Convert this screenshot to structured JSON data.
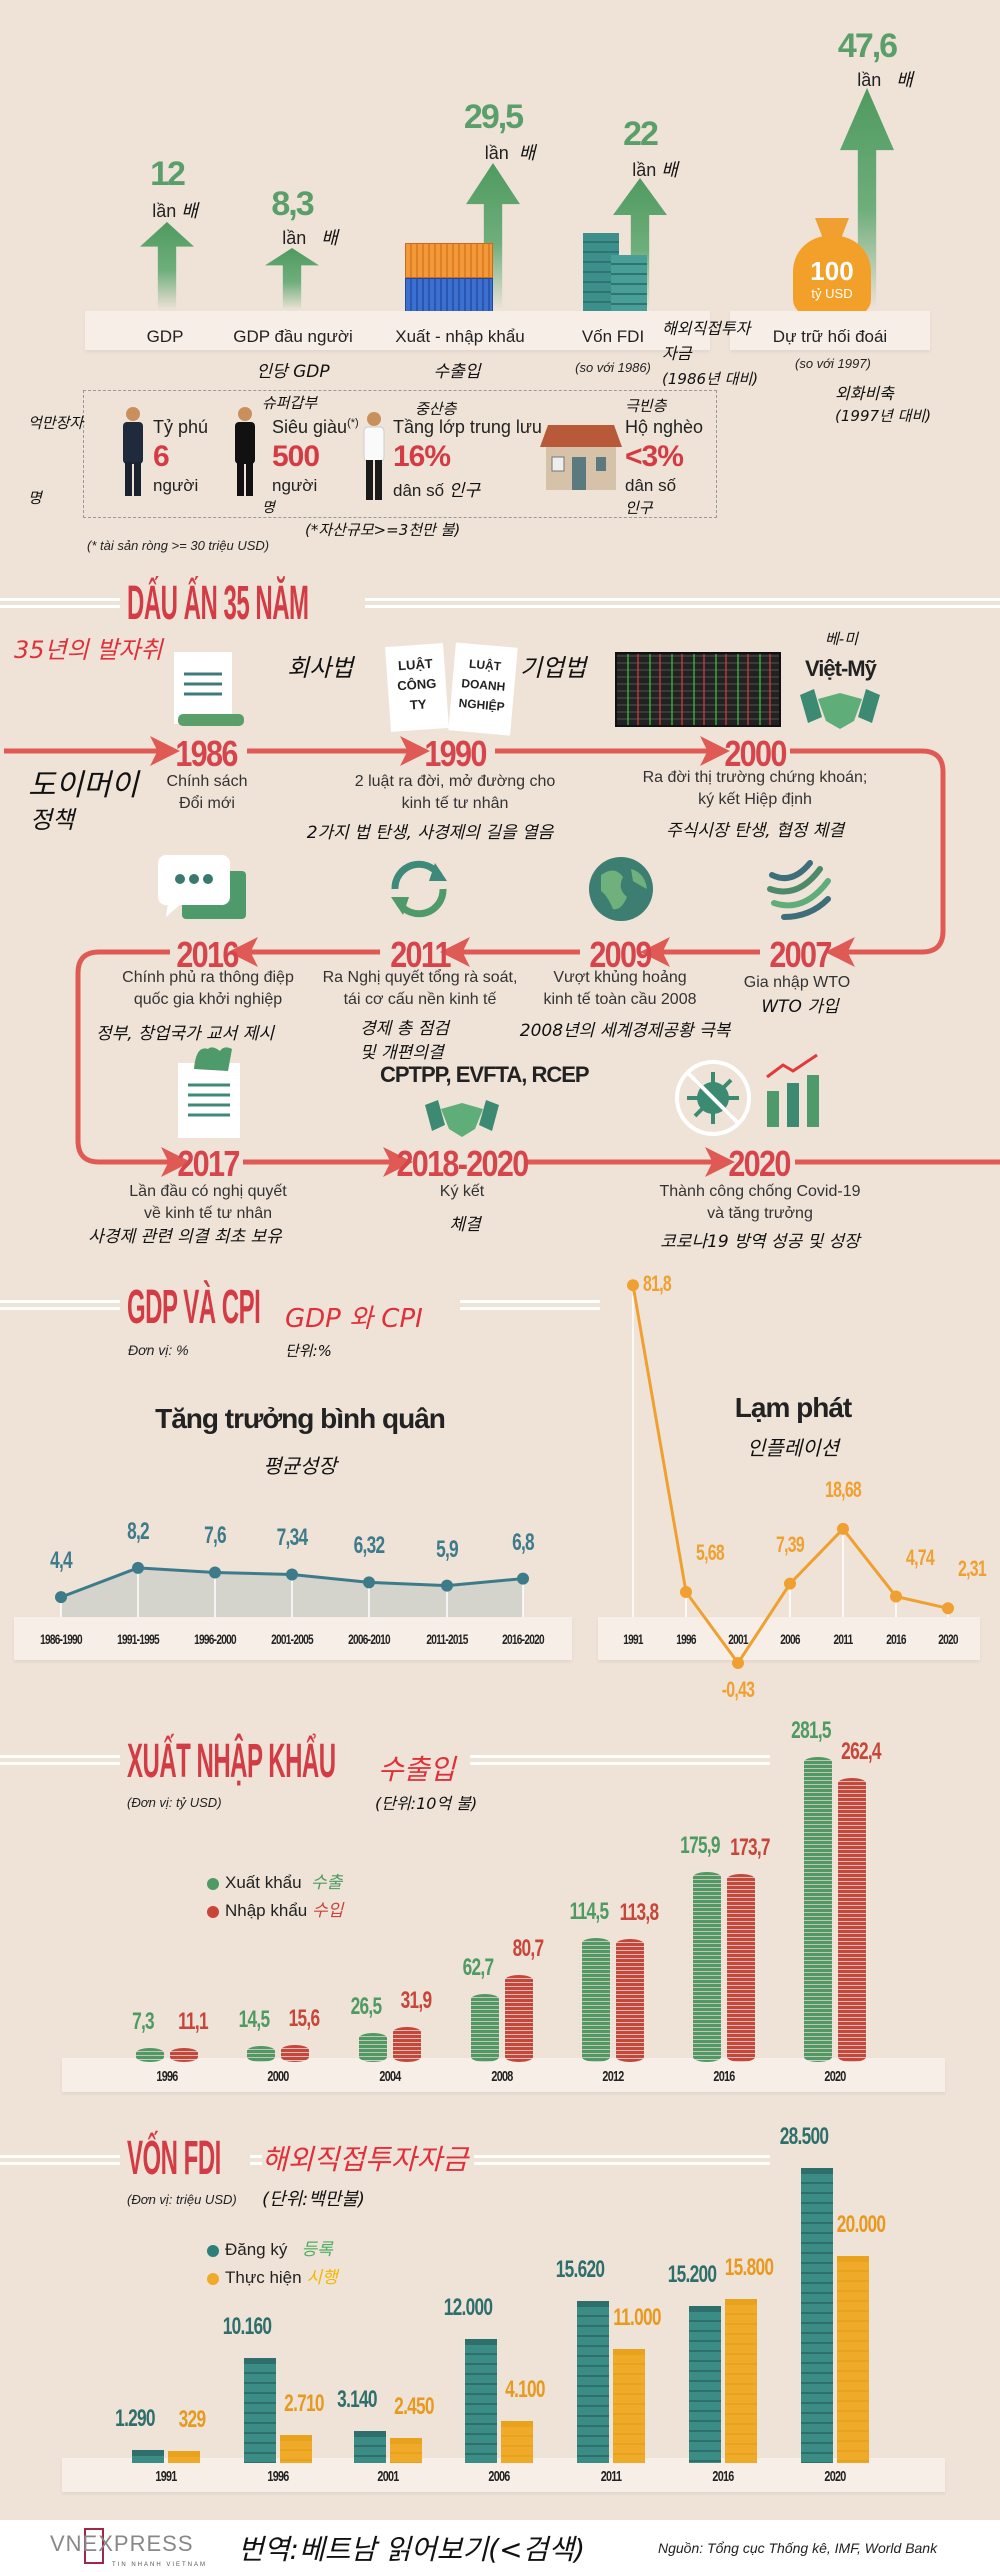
{
  "colors": {
    "background": "#efe3d8",
    "green": "#5a9e6a",
    "red": "#d33c45",
    "timeline": "#e05a55",
    "gdp_line": "#3d7b8a",
    "cpi_line": "#f0a030",
    "export": "#4e9a63",
    "import": "#c8453a",
    "fdi_registered": "#3a8c84",
    "fdi_implemented": "#f0aa2a"
  },
  "overview": {
    "items": [
      {
        "value": "12",
        "unit": "lần",
        "unit_ko": "배",
        "label": "GDP"
      },
      {
        "value": "8,3",
        "unit": "lần",
        "unit_ko": "배",
        "label": "GDP đầu người",
        "label_ko": "인당 GDP"
      },
      {
        "value": "29,5",
        "unit": "lần",
        "unit_ko": "배",
        "label": "Xuất - nhập khẩu",
        "label_ko": "수출입"
      },
      {
        "value": "22",
        "unit": "lần",
        "unit_ko": "배",
        "label": "Vốn FDI",
        "note": "(so với 1986)",
        "label_ko": "해외직접투자",
        "label_ko2": "자금",
        "note_ko": "(1986년 대비)"
      },
      {
        "value": "47,6",
        "unit": "lần",
        "unit_ko": "배",
        "label": "Dự trữ hối đoái",
        "note": "(so với 1997)",
        "label_ko": "외화비축",
        "note_ko": "(1997년 대비)",
        "bag_value": "100",
        "bag_unit": "tỷ USD"
      }
    ]
  },
  "society": {
    "groups": [
      {
        "title": "Tỷ phú",
        "title_ko": "억만장자",
        "value": "6",
        "unit": "người",
        "unit_ko": "명"
      },
      {
        "title": "Siêu giàu",
        "mark": "(*)",
        "title_ko": "슈퍼갑부",
        "value": "500",
        "unit": "người",
        "unit_ko": "명"
      },
      {
        "title": "Tầng lớp trung lưu",
        "title_ko": "중산층",
        "value": "16%",
        "unit": "dân số",
        "unit_ko": "인구"
      },
      {
        "title": "Hộ nghèo",
        "title_ko": "극빈층",
        "value": "<3%",
        "unit": "dân số",
        "unit_ko": "인구"
      }
    ],
    "footnote": "(* tài sản ròng >= 30 triệu USD)",
    "footnote_ko": "(*자산규모>=3천만 불)"
  },
  "timeline": {
    "title": "DẤU ẤN 35 NĂM",
    "title_ko": "35년의 발자취",
    "events": [
      {
        "year": "1986",
        "desc": [
          "Chính sách",
          "Đổi mới"
        ],
        "ko": [
          "도이머이",
          "정책"
        ]
      },
      {
        "year": "1990",
        "desc": [
          "2 luật ra đời, mở đường cho",
          "kinh tế tư nhân"
        ],
        "ko": [
          "2가지 법 탄생, 사경제의 길을 열음"
        ],
        "book1": [
          "LUẬT",
          "CÔNG",
          "TY"
        ],
        "book2": [
          "LUẬT",
          "DOANH",
          "NGHIỆP"
        ],
        "book1_ko": "회사법",
        "book2_ko": "기업법"
      },
      {
        "year": "2000",
        "desc": [
          "Ra đời thị trường chứng khoán;",
          "ký kết Hiệp định"
        ],
        "ko": [
          "주식시장 탄생, 협정 체결"
        ],
        "tag": "Việt-Mỹ",
        "tag_ko": "베-미"
      },
      {
        "year": "2007",
        "desc": [
          "Gia nhập WTO"
        ],
        "ko": [
          "WTO 가입"
        ]
      },
      {
        "year": "2009",
        "desc": [
          "Vượt khủng hoảng",
          "kinh tế toàn cầu 2008"
        ],
        "ko": [
          "2008년의 세계경제공황 극복"
        ]
      },
      {
        "year": "2011",
        "desc": [
          "Ra Nghị quyết tổng rà soát,",
          "tái cơ cấu nền kinh tế"
        ],
        "ko": [
          "경제 총 점검",
          "및 개편의결"
        ]
      },
      {
        "year": "2016",
        "desc": [
          "Chính phủ ra thông điệp",
          "quốc gia khởi nghiệp"
        ],
        "ko": [
          "정부, 창업국가 교서 제시"
        ]
      },
      {
        "year": "2017",
        "desc": [
          "Lần đầu có nghị quyết",
          "về kinh tế tư nhân"
        ],
        "ko": [
          "사경제 관련 의결 최초 보유"
        ]
      },
      {
        "year": "2018-2020",
        "desc": [
          "Ký kết"
        ],
        "ko": [
          "체결"
        ],
        "tag": "CPTPP, EVFTA, RCEP"
      },
      {
        "year": "2020",
        "desc": [
          "Thành công chống Covid-19",
          "và tăng trưởng"
        ],
        "ko": [
          "코로나19 방역 성공 및 성장"
        ]
      }
    ]
  },
  "gdp_cpi": {
    "title": "GDP VÀ CPI",
    "title_ko": "GDP 와 CPI",
    "unit": "Đơn vị: %",
    "unit_ko": "단위:%"
  },
  "trade": {
    "title": "XUẤT NHẬP KHẨU",
    "title_ko": "수출입",
    "unit": "(Đơn vị: tỷ USD)",
    "unit_ko": "(단위:10억 불)"
  },
  "fdi": {
    "title": "VỐN FDI",
    "title_ko": "해외직접투자자금",
    "unit": "(Đơn vị: triệu USD)",
    "unit_ko": "(단위:백만불)"
  },
  "chart_data": [
    {
      "type": "line",
      "title": "Tăng trưởng bình quân",
      "title_ko": "평균성장",
      "categories": [
        "1986-1990",
        "1991-1995",
        "1996-2000",
        "2001-2005",
        "2006-2010",
        "2011-2015",
        "2016-2020"
      ],
      "values": [
        4.4,
        8.2,
        7.6,
        7.34,
        6.32,
        5.9,
        6.8
      ],
      "labels": [
        "4,4",
        "8,2",
        "7,6",
        "7,34",
        "6,32",
        "5,9",
        "6,8"
      ]
    },
    {
      "type": "line",
      "title": "Lạm phát",
      "title_ko": "인플레이션",
      "categories": [
        "1991",
        "1996",
        "2001",
        "2006",
        "2011",
        "2016",
        "2020"
      ],
      "values": [
        81.8,
        5.68,
        -0.43,
        7.39,
        18.68,
        4.74,
        2.31
      ],
      "labels": [
        "81,8",
        "5,68",
        "-0,43",
        "7,39",
        "18,68",
        "4,74",
        "2,31"
      ]
    },
    {
      "type": "bar",
      "categories": [
        "1996",
        "2000",
        "2004",
        "2008",
        "2012",
        "2016",
        "2020"
      ],
      "series": [
        {
          "name": "Xuất khẩu",
          "name_ko": "수출",
          "values": [
            7.3,
            14.5,
            26.5,
            62.7,
            114.5,
            175.9,
            281.5
          ],
          "labels": [
            "7,3",
            "14,5",
            "26,5",
            "62,7",
            "114,5",
            "175,9",
            "281,5"
          ]
        },
        {
          "name": "Nhập khẩu",
          "name_ko": "수입",
          "values": [
            11.1,
            15.6,
            31.9,
            80.7,
            113.8,
            173.7,
            262.4
          ],
          "labels": [
            "11,1",
            "15,6",
            "31,9",
            "80,7",
            "113,8",
            "173,7",
            "262,4"
          ]
        }
      ]
    },
    {
      "type": "bar",
      "categories": [
        "1991",
        "1996",
        "2001",
        "2006",
        "2011",
        "2016",
        "2020"
      ],
      "series": [
        {
          "name": "Đăng ký",
          "name_ko": "등록",
          "values": [
            1290,
            10160,
            3140,
            12000,
            15620,
            15200,
            28500
          ],
          "labels": [
            "1.290",
            "10.160",
            "3.140",
            "12.000",
            "15.620",
            "15.200",
            "28.500"
          ]
        },
        {
          "name": "Thực hiện",
          "name_ko": "시행",
          "values": [
            329,
            2710,
            2450,
            4100,
            11000,
            15800,
            20000
          ],
          "labels": [
            "329",
            "2.710",
            "2.450",
            "4.100",
            "11.000",
            "15.800",
            "20.000"
          ]
        }
      ]
    }
  ],
  "footer": {
    "logo": "VNEXPRESS",
    "logo_sub": "TIN NHANH VIETNAM",
    "translator": "번역:베트남 읽어보기(<검색)",
    "source": "Nguồn: Tổng cục Thống kê, IMF, World Bank"
  }
}
